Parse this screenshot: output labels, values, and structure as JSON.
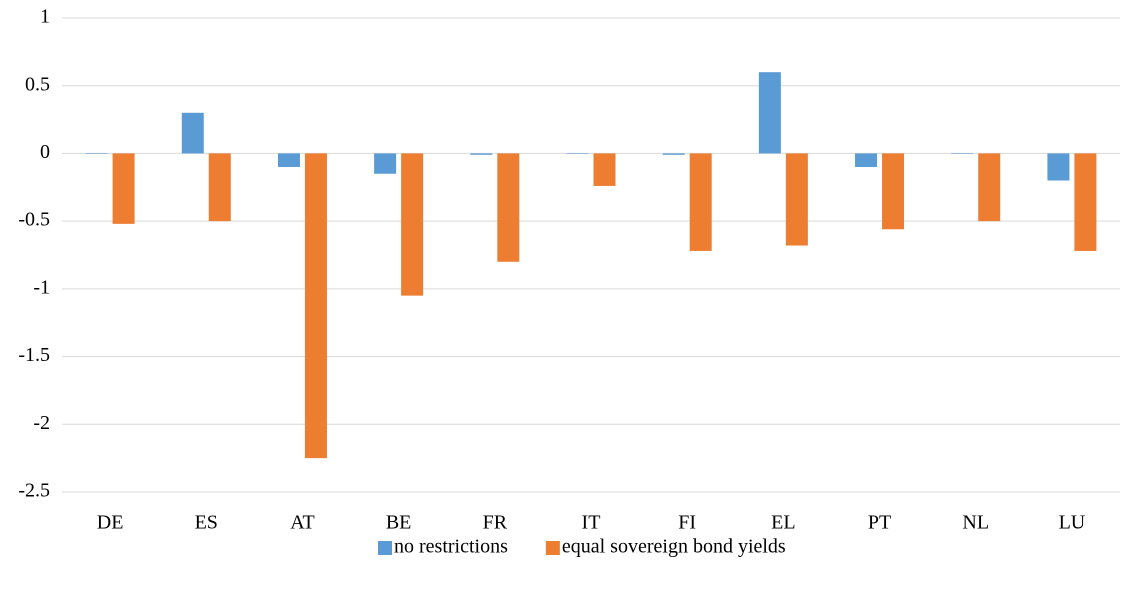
{
  "chart_data": {
    "type": "bar",
    "categories": [
      "DE",
      "ES",
      "AT",
      "BE",
      "FR",
      "IT",
      "FI",
      "EL",
      "PT",
      "NL",
      "LU"
    ],
    "series": [
      {
        "name": "no restrictions",
        "color": "#5b9bd5",
        "values": [
          0,
          0.3,
          -0.1,
          -0.15,
          -0.01,
          0,
          -0.01,
          0.6,
          -0.1,
          0,
          -0.2
        ]
      },
      {
        "name": "equal sovereign bond yields",
        "color": "#ed7d31",
        "values": [
          -0.52,
          -0.5,
          -2.25,
          -1.05,
          -0.8,
          -0.24,
          -0.72,
          -0.68,
          -0.56,
          -0.5,
          -0.72
        ]
      }
    ],
    "ylim": [
      -2.5,
      1
    ],
    "yticks": [
      -2.5,
      -2,
      -1.5,
      -1,
      -0.5,
      0,
      0.5,
      1
    ],
    "grid": true,
    "legend": "bottom"
  }
}
